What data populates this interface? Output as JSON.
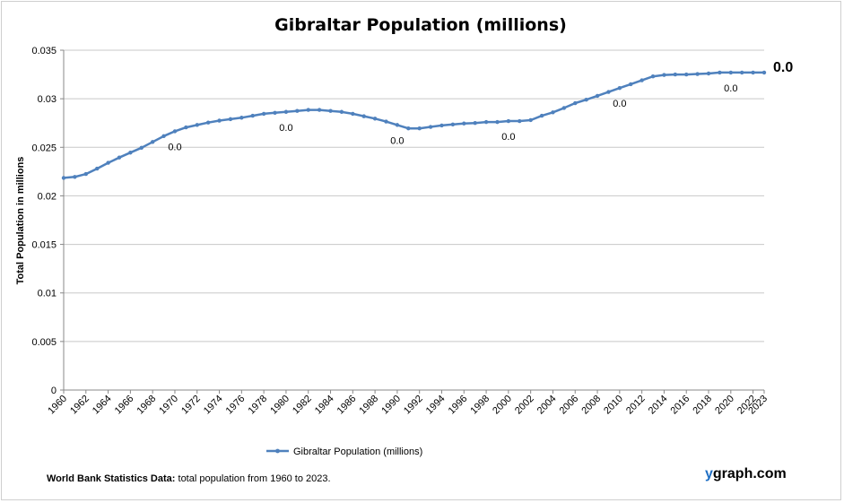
{
  "chart_data": {
    "type": "line",
    "title": "Gibraltar Population (millions)",
    "ylabel": "Total Population  in millions",
    "xlabel": "",
    "ylim": [
      0,
      0.035
    ],
    "yticks": [
      "0",
      "0.005",
      "0.01",
      "0.015",
      "0.02",
      "0.025",
      "0.03",
      "0.035"
    ],
    "ytick_values": [
      0,
      0.005,
      0.01,
      0.015,
      0.02,
      0.025,
      0.03,
      0.035
    ],
    "xlim": [
      1960,
      2023
    ],
    "xticks": [
      "1960",
      "1962",
      "1964",
      "1966",
      "1968",
      "1970",
      "1972",
      "1974",
      "1976",
      "1978",
      "1980",
      "1982",
      "1984",
      "1986",
      "1988",
      "1990",
      "1992",
      "1994",
      "1996",
      "1998",
      "2000",
      "2002",
      "2004",
      "2006",
      "2008",
      "2010",
      "2012",
      "2014",
      "2016",
      "2018",
      "2020",
      "2022",
      "2023"
    ],
    "xtick_values": [
      1960,
      1962,
      1964,
      1966,
      1968,
      1970,
      1972,
      1974,
      1976,
      1978,
      1980,
      1982,
      1984,
      1986,
      1988,
      1990,
      1992,
      1994,
      1996,
      1998,
      2000,
      2002,
      2004,
      2006,
      2008,
      2010,
      2012,
      2014,
      2016,
      2018,
      2020,
      2022,
      2023
    ],
    "grid": true,
    "legend": "bottom",
    "series": [
      {
        "name": "Gibraltar Population (millions)",
        "color": "#4f81bd",
        "x": [
          1960,
          1961,
          1962,
          1963,
          1964,
          1965,
          1966,
          1967,
          1968,
          1969,
          1970,
          1971,
          1972,
          1973,
          1974,
          1975,
          1976,
          1977,
          1978,
          1979,
          1980,
          1981,
          1982,
          1983,
          1984,
          1985,
          1986,
          1987,
          1988,
          1989,
          1990,
          1991,
          1992,
          1993,
          1994,
          1995,
          1996,
          1997,
          1998,
          1999,
          2000,
          2001,
          2002,
          2003,
          2004,
          2005,
          2006,
          2007,
          2008,
          2009,
          2010,
          2011,
          2012,
          2013,
          2014,
          2015,
          2016,
          2017,
          2018,
          2019,
          2020,
          2021,
          2022,
          2023
        ],
        "values": [
          0.02185,
          0.02195,
          0.02225,
          0.0228,
          0.0234,
          0.02395,
          0.02445,
          0.02495,
          0.02555,
          0.02615,
          0.02665,
          0.02705,
          0.0273,
          0.02755,
          0.02775,
          0.0279,
          0.02805,
          0.02825,
          0.02845,
          0.02855,
          0.02865,
          0.02875,
          0.02885,
          0.02885,
          0.02875,
          0.02865,
          0.02845,
          0.0282,
          0.02795,
          0.02765,
          0.0273,
          0.02695,
          0.02695,
          0.0271,
          0.02725,
          0.02735,
          0.02745,
          0.0275,
          0.0276,
          0.0276,
          0.0277,
          0.0277,
          0.0278,
          0.02825,
          0.0286,
          0.02905,
          0.02955,
          0.0299,
          0.0303,
          0.0307,
          0.0311,
          0.0315,
          0.0319,
          0.0323,
          0.03245,
          0.0325,
          0.0325,
          0.03255,
          0.0326,
          0.0327,
          0.0327,
          0.0327,
          0.0327,
          0.0327
        ]
      }
    ],
    "data_labels": [
      {
        "x": 1970,
        "text": "0.0"
      },
      {
        "x": 1980,
        "text": "0.0"
      },
      {
        "x": 1990,
        "text": "0.0"
      },
      {
        "x": 2000,
        "text": "0.0"
      },
      {
        "x": 2010,
        "text": "0.0"
      },
      {
        "x": 2020,
        "text": "0.0"
      }
    ],
    "last_label": "0.0"
  },
  "footer": {
    "source_bold": "World Bank Statistics Data:",
    "source_text": " total population from 1960 to 2023."
  },
  "brand": {
    "y_letter": "y",
    "rest": "graph.com"
  }
}
